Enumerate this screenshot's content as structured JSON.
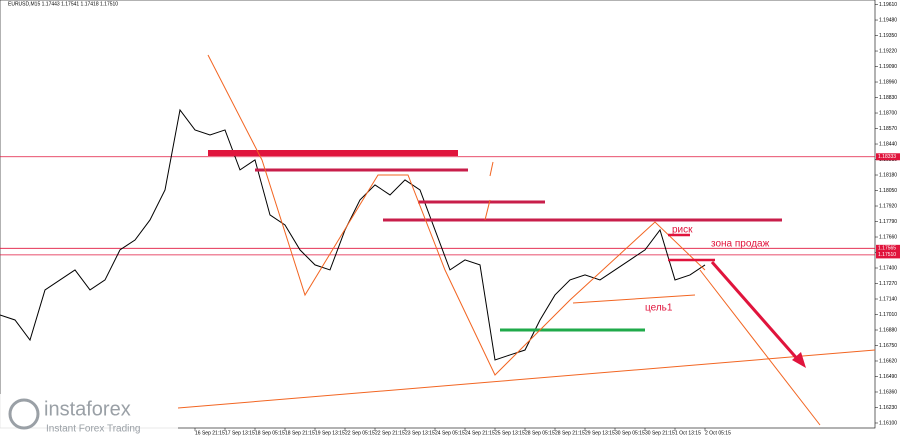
{
  "chart_data": {
    "type": "line",
    "title": "EURUSD,M15 1.17443 1.17541 1.17418 1.17510",
    "color": "#000000",
    "categories": [
      null,
      null,
      null,
      null,
      null,
      null,
      null,
      null,
      null,
      null,
      null,
      null,
      null,
      "16 Sep 21:15",
      null,
      "17 Sep 13:15",
      null,
      "18 Sep 05:15",
      null,
      "18 Sep 21:15",
      null,
      "19 Sep 13:15",
      null,
      "22 Sep 05:15",
      null,
      "22 Sep 21:15",
      null,
      "23 Sep 13:15",
      null,
      "24 Sep 05:15",
      null,
      "24 Sep 21:15",
      null,
      "25 Sep 13:15",
      null,
      "28 Sep 05:15",
      null,
      "28 Sep 21:15",
      null,
      "29 Sep 13:15",
      null,
      "30 Sep 05:15",
      null,
      "30 Sep 21:15",
      null,
      "1 Oct 13:15",
      null,
      "2 Oct 05:15"
    ],
    "values": [
      1.17006,
      1.16964,
      1.16796,
      1.17216,
      1.173,
      1.17384,
      1.17216,
      1.173,
      1.17552,
      1.17635,
      1.17803,
      1.18055,
      1.18726,
      1.18558,
      1.18516,
      1.18558,
      1.18223,
      1.18307,
      1.17845,
      1.17761,
      1.17552,
      1.17426,
      1.17384,
      1.17719,
      1.17971,
      1.18097,
      1.18013,
      1.18139,
      1.18055,
      1.17719,
      1.17384,
      1.17468,
      1.17426,
      1.16629,
      1.16671,
      1.16712,
      1.16964,
      1.17174,
      1.173,
      1.17342,
      1.173,
      1.17384,
      1.17468,
      1.17552,
      1.17719,
      1.173,
      1.17342,
      1.17426
    ],
    "ylim": [
      1.16058,
      1.19648
    ],
    "yticks": [
      {
        "value": 1.161,
        "label": "1.16100"
      },
      {
        "value": 1.1623,
        "label": "1.16230"
      },
      {
        "value": 1.1636,
        "label": "1.16360"
      },
      {
        "value": 1.1649,
        "label": "1.16490"
      },
      {
        "value": 1.1662,
        "label": "1.16620"
      },
      {
        "value": 1.1675,
        "label": "1.16750"
      },
      {
        "value": 1.1688,
        "label": "1.16880"
      },
      {
        "value": 1.1701,
        "label": "1.17010"
      },
      {
        "value": 1.1714,
        "label": "1.17140"
      },
      {
        "value": 1.1727,
        "label": "1.17270"
      },
      {
        "value": 1.174,
        "label": "1.17400"
      },
      {
        "value": 1.1753,
        "label": "1.17530"
      },
      {
        "value": 1.1766,
        "label": "1.17660"
      },
      {
        "value": 1.1779,
        "label": "1.17790"
      },
      {
        "value": 1.1792,
        "label": "1.17920"
      },
      {
        "value": 1.1805,
        "label": "1.18050"
      },
      {
        "value": 1.1818,
        "label": "1.18180"
      },
      {
        "value": 1.1831,
        "label": "1.18310"
      },
      {
        "value": 1.1844,
        "label": "1.18440"
      },
      {
        "value": 1.1857,
        "label": "1.18570"
      },
      {
        "value": 1.187,
        "label": "1.18700"
      },
      {
        "value": 1.1883,
        "label": "1.18830"
      },
      {
        "value": 1.1896,
        "label": "1.18960"
      },
      {
        "value": 1.1909,
        "label": "1.19090"
      },
      {
        "value": 1.1922,
        "label": "1.19220"
      },
      {
        "value": 1.1935,
        "label": "1.19350"
      },
      {
        "value": 1.1948,
        "label": "1.19480"
      },
      {
        "value": 1.1961,
        "label": "1.19610"
      }
    ],
    "levels": [
      1.18333,
      1.17565,
      {
        "value": 1.1751,
        "label": "1.17510"
      }
    ],
    "annotations": [
      "риск",
      "зона продаж",
      "цель1"
    ],
    "watermark": {
      "brand": "instaforex",
      "tagline": "Instant Forex Trading"
    }
  }
}
